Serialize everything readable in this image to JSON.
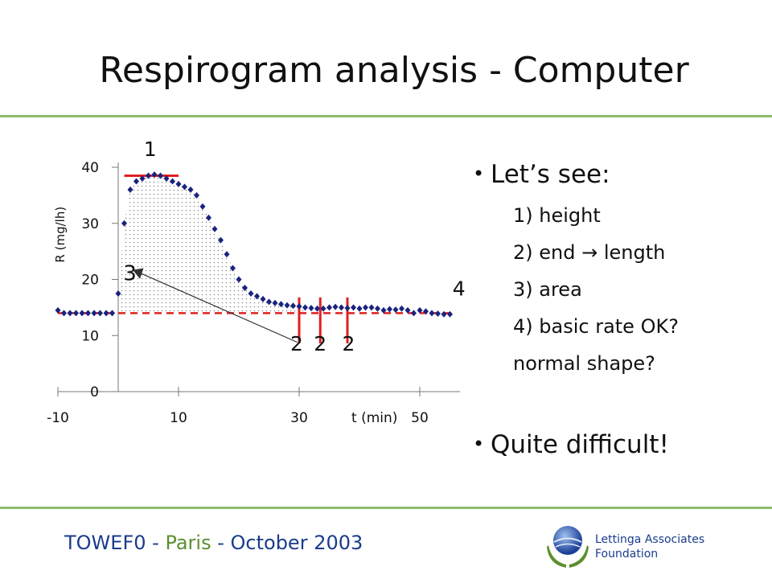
{
  "slide": {
    "title": "Respirogram analysis - Computer",
    "bullets": {
      "intro": "Let’s see:",
      "items": [
        "1) height",
        "2) end → length",
        "3) area",
        "4) basic rate OK?",
        "normal shape?"
      ],
      "conclusion": "Quite difficult!"
    },
    "footer": {
      "event": "TOWEF0",
      "separator1": " - ",
      "place": "Paris",
      "separator2": " - ",
      "date": "October 2003"
    },
    "organization": [
      "Lettinga Associates",
      "Foundation"
    ]
  },
  "chart_data": {
    "type": "scatter",
    "xlabel": "t (min)",
    "ylabel": "R  (mg/lh)",
    "xlim": [
      -10,
      56
    ],
    "ylim": [
      0,
      40
    ],
    "x_ticks": [
      -10,
      10,
      30,
      50
    ],
    "y_ticks": [
      0,
      10,
      20,
      30,
      40
    ],
    "grid": false,
    "series": [
      {
        "marker": "diamond",
        "color": "#1a237e",
        "x": [
          -10,
          -9,
          -8,
          -7,
          -6,
          -5,
          -4,
          -3,
          -2,
          -1,
          0,
          1,
          2,
          3,
          4,
          5,
          6,
          7,
          8,
          9,
          10,
          11,
          12,
          13,
          14,
          15,
          16,
          17,
          18,
          19,
          20,
          21,
          22,
          23,
          24,
          25,
          26,
          27,
          28,
          29,
          30,
          31,
          32,
          33,
          34,
          35,
          36,
          37,
          38,
          39,
          40,
          41,
          42,
          43,
          44,
          45,
          46,
          47,
          48,
          49,
          50,
          51,
          52,
          53,
          54,
          55
        ],
        "y": [
          14.5,
          14,
          14,
          14,
          14,
          14,
          14,
          14,
          14,
          14,
          17.5,
          30,
          36,
          37.5,
          38,
          38.5,
          38.7,
          38.5,
          38,
          37.5,
          37,
          36.5,
          36,
          35,
          33,
          31,
          29,
          27,
          24.5,
          22,
          20,
          18.5,
          17.5,
          17,
          16.5,
          16,
          15.8,
          15.6,
          15.4,
          15.3,
          15.2,
          15,
          14.9,
          14.8,
          14.8,
          15,
          15.1,
          15,
          14.9,
          15,
          14.8,
          15,
          15,
          14.8,
          14.5,
          14.7,
          14.6,
          14.8,
          14.5,
          14,
          14.5,
          14.3,
          14,
          13.9,
          13.8,
          13.8
        ]
      }
    ],
    "annotations": [
      {
        "label": "1",
        "desc": "peak height line",
        "y": 38.5,
        "x_range": [
          1,
          10
        ]
      },
      {
        "label": "2",
        "x": 30
      },
      {
        "label": "2",
        "x": 33.5
      },
      {
        "label": "2",
        "x": 38
      },
      {
        "label": "3",
        "desc": "shaded area"
      },
      {
        "label": "4",
        "desc": "basic rate line",
        "y": 14
      }
    ],
    "colors": {
      "markers": "#1a237e",
      "annotation_lines": "#e02020",
      "area_fill": "#8a8a8a"
    }
  }
}
